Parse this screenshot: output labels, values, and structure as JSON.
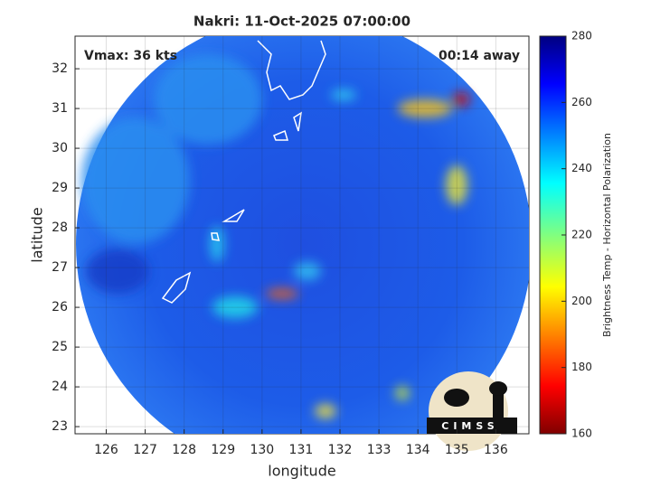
{
  "chart_data": {
    "type": "image",
    "title": "Nakri: 11-Oct-2025 07:00:00",
    "annotations": [
      "Vmax: 36 kts",
      "00:14 away"
    ],
    "x_label": "longitude",
    "y_label": "latitude",
    "xlim": [
      125.2,
      136.85
    ],
    "xticks": [
      126,
      127,
      128,
      129,
      130,
      131,
      132,
      133,
      134,
      135,
      136
    ],
    "ylim": [
      22.82,
      32.82
    ],
    "yticks": [
      23,
      24,
      25,
      26,
      27,
      28,
      29,
      30,
      31,
      32
    ],
    "grid": true,
    "colorbar": {
      "label": "Brightness Temp - Horizontal Polarization",
      "lim": [
        160,
        280
      ],
      "ticks": [
        160,
        180,
        200,
        220,
        240,
        260,
        280
      ]
    },
    "logo_text": "CIMSS"
  }
}
